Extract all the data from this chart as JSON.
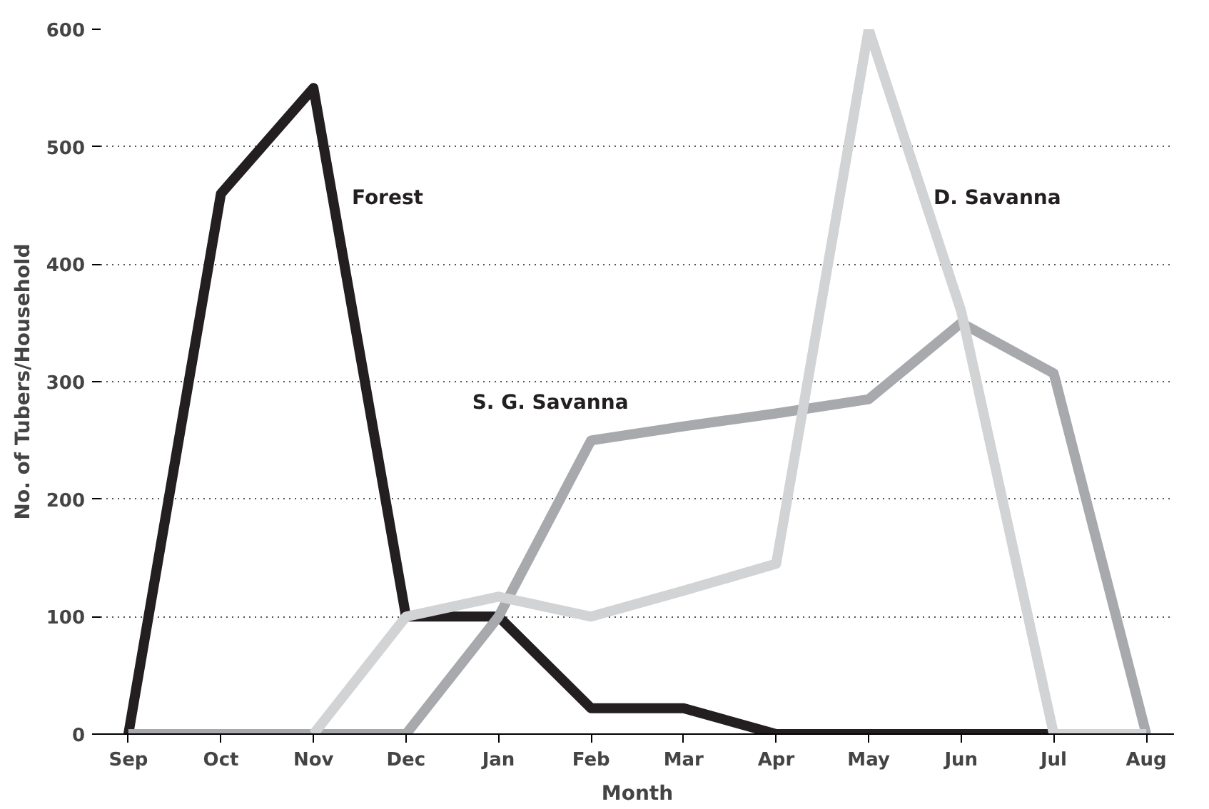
{
  "chart_data": {
    "type": "line",
    "xlabel": "Month",
    "ylabel": "No. of Tubers/Household",
    "categories": [
      "Sep",
      "Oct",
      "Nov",
      "Dec",
      "Jan",
      "Feb",
      "Mar",
      "Apr",
      "May",
      "Jun",
      "Jul",
      "Aug"
    ],
    "series": [
      {
        "color": "#231f20",
        "values": [
          0,
          460,
          550,
          100,
          100,
          22,
          22,
          0,
          0,
          0,
          0,
          0
        ]
      },
      {
        "color": "#a7a9ac",
        "values": [
          0,
          0,
          0,
          0,
          100,
          250,
          262,
          273,
          285,
          350,
          307,
          0
        ]
      },
      {
        "color": "#d1d3d4",
        "values": [
          null,
          null,
          0,
          100,
          117,
          100,
          122,
          145,
          600,
          360,
          0,
          0
        ]
      }
    ],
    "ylim": [
      0,
      600
    ],
    "yticks": [
      0,
      100,
      200,
      300,
      400,
      500,
      600
    ],
    "grid": "y",
    "marker": "none",
    "line_style": "solid",
    "annotations": [
      "Forest",
      "S. G. Savanna",
      "D. Savanna"
    ]
  }
}
